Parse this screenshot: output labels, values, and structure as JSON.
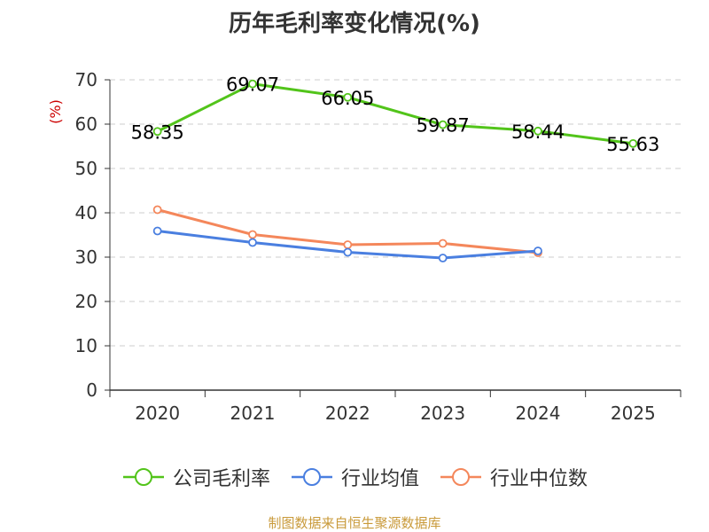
{
  "chart_data": {
    "type": "line",
    "title": "历年毛利率变化情况(%)",
    "ylabel": "(%)",
    "xlabel": "",
    "categories": [
      "2020",
      "2021",
      "2022",
      "2023",
      "2024",
      "2025"
    ],
    "ylim": [
      0,
      70
    ],
    "yticks": [
      0,
      10,
      20,
      30,
      40,
      50,
      60,
      70
    ],
    "grid": true,
    "legend_position": "bottom",
    "series": [
      {
        "name": "公司毛利率",
        "color": "#52c41a",
        "values": [
          58.35,
          69.07,
          66.05,
          59.87,
          58.44,
          55.63
        ],
        "labels": [
          "58.35",
          "69.07",
          "66.05",
          "59.87",
          "58.44",
          "55.63"
        ]
      },
      {
        "name": "行业均值",
        "color": "#4a7fe0",
        "values": [
          35.9,
          33.3,
          31.1,
          29.8,
          31.4,
          null
        ]
      },
      {
        "name": "行业中位数",
        "color": "#f4875b",
        "values": [
          40.7,
          35.1,
          32.8,
          33.1,
          31.0,
          null
        ]
      }
    ]
  },
  "footer": {
    "source": "制图数据来自恒生聚源数据库"
  }
}
